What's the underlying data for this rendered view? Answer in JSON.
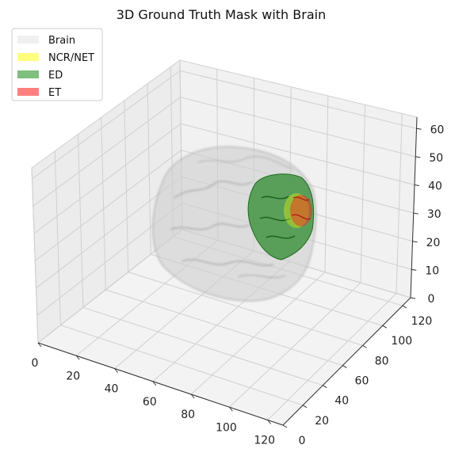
{
  "chart_data": {
    "type": "scatter",
    "title": "3D Ground Truth Mask with Brain",
    "xlabel": "",
    "ylabel": "",
    "zlabel": "",
    "projection": "3d",
    "xlim": [
      0,
      128
    ],
    "ylim": [
      0,
      128
    ],
    "zlim": [
      0,
      64
    ],
    "x_ticks": [
      "0",
      "20",
      "40",
      "60",
      "80",
      "100",
      "120"
    ],
    "y_ticks": [
      "0",
      "20",
      "40",
      "60",
      "80",
      "100",
      "120"
    ],
    "z_ticks": [
      "0",
      "10",
      "20",
      "30",
      "40",
      "50",
      "60"
    ],
    "grid": true,
    "legend_position": "top-left",
    "series": [
      {
        "name": "Brain",
        "color": "#d9d9d9",
        "alpha": 0.4,
        "description_values": {
          "x_range": [
            5,
            125
          ],
          "y_range": [
            5,
            120
          ],
          "z_range": [
            5,
            60
          ]
        }
      },
      {
        "name": "NCR/NET",
        "color": "#ffff00",
        "alpha": 0.5,
        "description_values": {
          "x_range": [
            105,
            120
          ],
          "y_range": [
            60,
            80
          ],
          "z_range": [
            25,
            40
          ]
        }
      },
      {
        "name": "ED",
        "color": "#008000",
        "alpha": 0.5,
        "description_values": {
          "x_range": [
            95,
            125
          ],
          "y_range": [
            50,
            95
          ],
          "z_range": [
            18,
            50
          ]
        }
      },
      {
        "name": "ET",
        "color": "#ff0000",
        "alpha": 0.5,
        "description_values": {
          "x_range": [
            108,
            122
          ],
          "y_range": [
            60,
            82
          ],
          "z_range": [
            25,
            40
          ]
        }
      }
    ]
  }
}
